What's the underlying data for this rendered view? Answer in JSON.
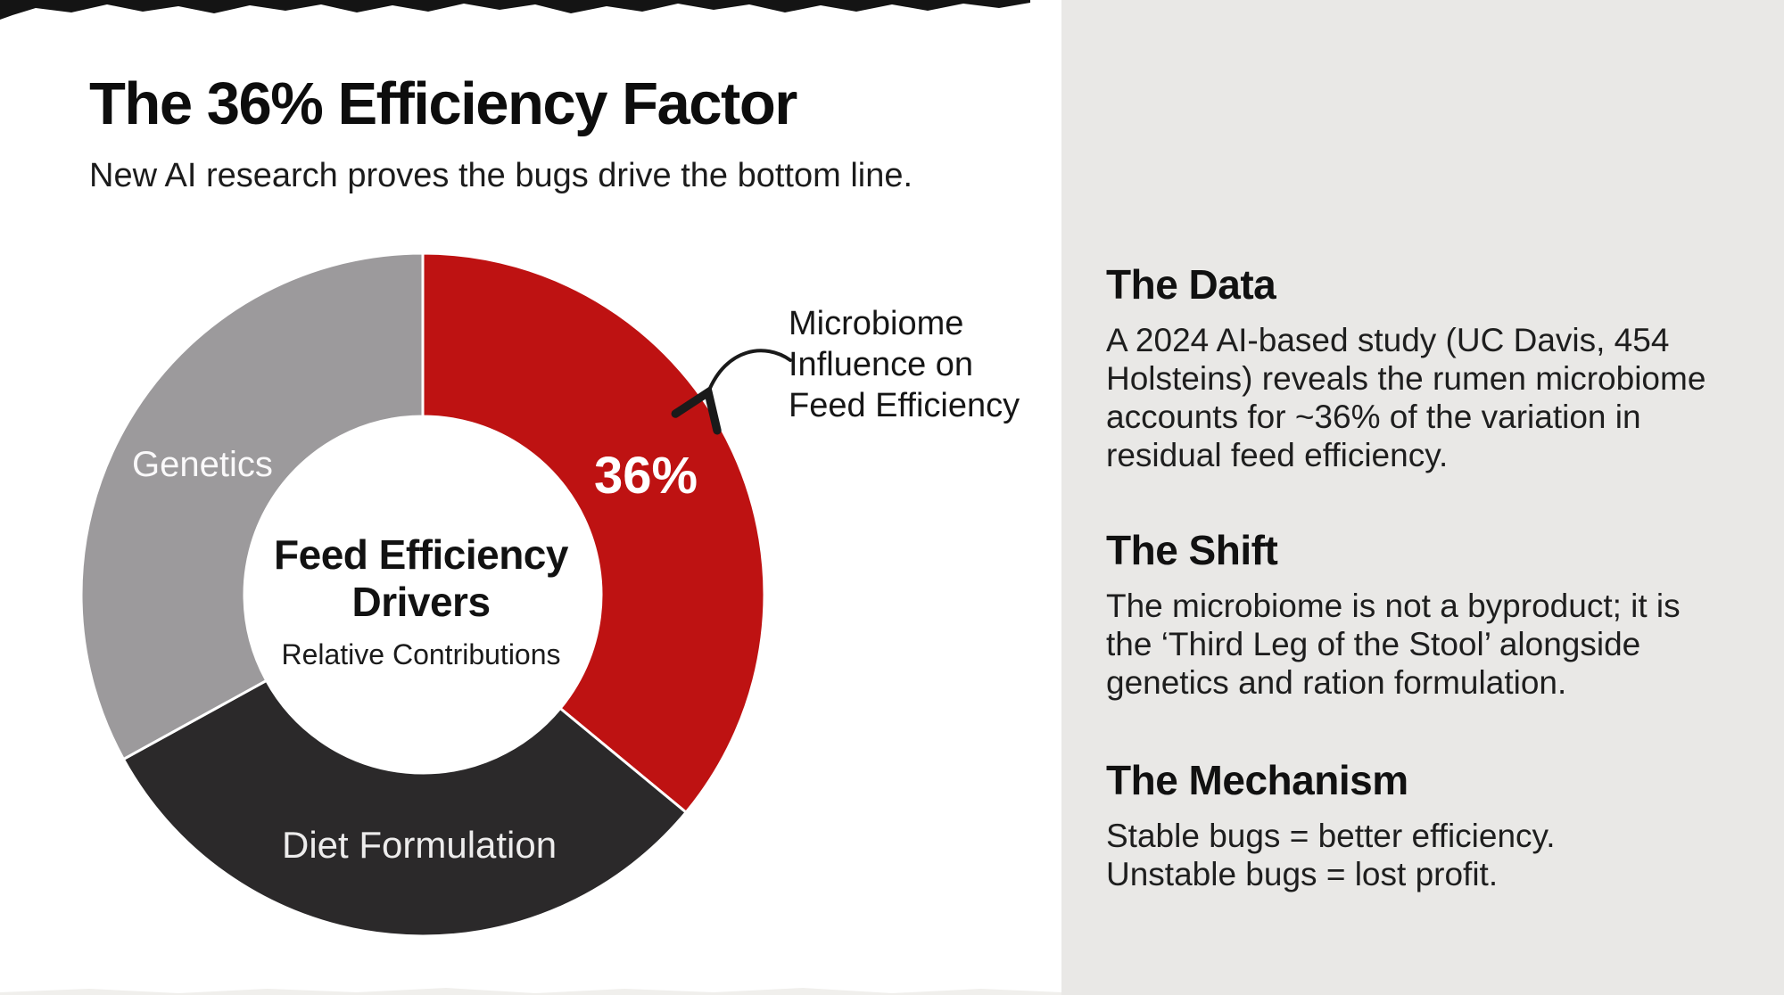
{
  "page": {
    "title": "The 36% Efficiency Factor",
    "subtitle": "New AI research proves the bugs drive the bottom line."
  },
  "chart_data": {
    "type": "pie",
    "subtype": "donut",
    "title_line1": "Feed Efficiency",
    "title_line2": "Drivers",
    "subtitle": "Relative Contributions",
    "direction": "clockwise",
    "start_angle_deg": 0,
    "inner_radius_ratio": 0.52,
    "outer_radius_px": 383,
    "inner_radius_px": 200,
    "segments": [
      {
        "label": "Microbiome Influence on Feed Efficiency",
        "value": 36,
        "color": "#BE1212",
        "data_label": "36%",
        "label_color": "#FFFFFF"
      },
      {
        "label": "Diet Formulation",
        "value": 31,
        "color": "#2B292A",
        "label_color": "#EDECEC"
      },
      {
        "label": "Genetics",
        "value": 33,
        "color": "#9C9A9C",
        "label_color": "#FAF9FA"
      }
    ],
    "separator_color": "#FFFFFF",
    "annotation": {
      "line1": "Microbiome",
      "line2": "Influence on",
      "line3": "Feed Efficiency",
      "arrow_color": "#1A1A1A"
    }
  },
  "panel": {
    "sections": [
      {
        "heading": "The Data",
        "line1": "A 2024 AI-based study (UC Davis, 454",
        "line2": "Holsteins) reveals the rumen microbiome",
        "line3": "accounts for ~36% of the variation in",
        "line4": "residual feed efficiency."
      },
      {
        "heading": "The Shift",
        "line1": "The microbiome is not a byproduct; it is",
        "line2": "the ‘Third Leg of the Stool’ alongside",
        "line3": "genetics and ration formulation."
      },
      {
        "heading": "The Mechanism",
        "line1": "Stable bugs = better efficiency.",
        "line2": "Unstable bugs = lost profit."
      }
    ]
  },
  "colors": {
    "left_bg": "#FFFFFF",
    "right_bg": "#E9E8E6",
    "torn_edge": "#141414"
  }
}
